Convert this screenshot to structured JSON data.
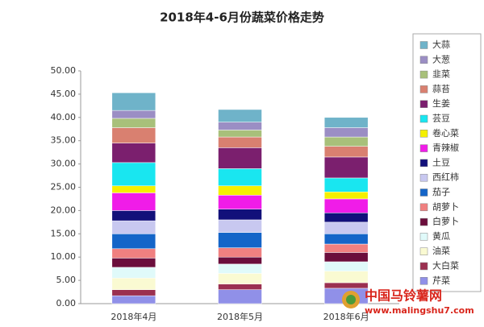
{
  "chart_data": {
    "type": "stacked_bar",
    "title": "2018年4-6月份蔬菜价格走势",
    "categories": [
      "2018年4月",
      "2018年5月",
      "2018年6月"
    ],
    "series": [
      {
        "name": "芹菜",
        "color": "#9090e8",
        "values": [
          1.7,
          3.0,
          3.3
        ]
      },
      {
        "name": "大白菜",
        "color": "#9b3050",
        "values": [
          1.3,
          1.2,
          1.2
        ]
      },
      {
        "name": "油菜",
        "color": "#fafad2",
        "values": [
          2.5,
          2.3,
          2.5
        ]
      },
      {
        "name": "黄瓜",
        "color": "#e0fafa",
        "values": [
          2.3,
          2.0,
          2.0
        ]
      },
      {
        "name": "白萝卜",
        "color": "#6b0e3c",
        "values": [
          2.0,
          1.5,
          2.0
        ]
      },
      {
        "name": "胡萝卜",
        "color": "#f08080",
        "values": [
          2.0,
          2.0,
          1.8
        ]
      },
      {
        "name": "茄子",
        "color": "#1465c8",
        "values": [
          3.2,
          3.3,
          2.2
        ]
      },
      {
        "name": "西红柿",
        "color": "#c8c8f0",
        "values": [
          2.8,
          2.7,
          2.5
        ]
      },
      {
        "name": "土豆",
        "color": "#12107a",
        "values": [
          2.2,
          2.3,
          2.0
        ]
      },
      {
        "name": "青辣椒",
        "color": "#f01ce8",
        "values": [
          3.8,
          3.0,
          3.0
        ]
      },
      {
        "name": "卷心菜",
        "color": "#f5f000",
        "values": [
          1.5,
          2.0,
          1.5
        ]
      },
      {
        "name": "芸豆",
        "color": "#19e6f0",
        "values": [
          5.0,
          3.7,
          3.0
        ]
      },
      {
        "name": "生姜",
        "color": "#7b1f6e",
        "values": [
          4.2,
          4.5,
          4.5
        ]
      },
      {
        "name": "蒜苔",
        "color": "#d98070",
        "values": [
          3.3,
          2.3,
          2.3
        ]
      },
      {
        "name": "韭菜",
        "color": "#a8c07a",
        "values": [
          2.0,
          1.5,
          2.0
        ]
      },
      {
        "name": "大葱",
        "color": "#9b8ec4",
        "values": [
          1.7,
          1.7,
          2.0
        ]
      },
      {
        "name": "大蒜",
        "color": "#6fb3c9",
        "values": [
          3.8,
          2.7,
          2.2
        ]
      }
    ],
    "ylim": [
      0,
      50
    ],
    "yticks": [
      {
        "value": 0,
        "label": "0.00"
      },
      {
        "value": 5,
        "label": "5.00"
      },
      {
        "value": 10,
        "label": "10.00"
      },
      {
        "value": 15,
        "label": "15.00"
      },
      {
        "value": 20,
        "label": "20.00"
      },
      {
        "value": 25,
        "label": "25.00"
      },
      {
        "value": 30,
        "label": "30.00"
      },
      {
        "value": 35,
        "label": "35.00"
      },
      {
        "value": 40,
        "label": "40.00"
      },
      {
        "value": 45,
        "label": "45.00"
      },
      {
        "value": 50,
        "label": "50.00"
      }
    ],
    "grid": false,
    "legend": "right"
  },
  "watermark": {
    "name": "中国马铃薯网",
    "url": "www.malingshu7.com"
  }
}
